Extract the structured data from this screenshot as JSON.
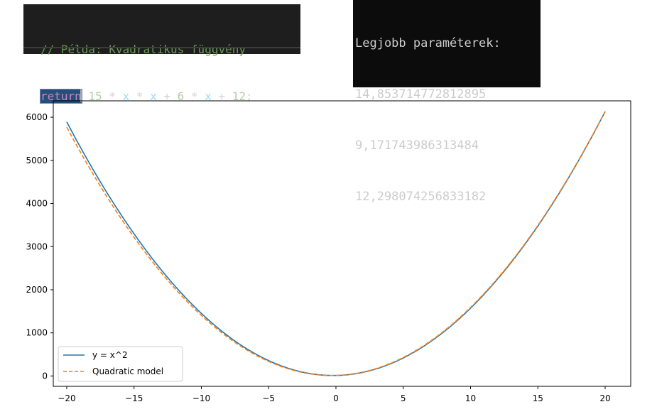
{
  "code_editor": {
    "comment": "// Példa: Kvadratikus függvény",
    "tokens": [
      {
        "text": "return",
        "kind": "keyword"
      },
      {
        "text": " 15",
        "kind": "number"
      },
      {
        "text": " *",
        "kind": "op"
      },
      {
        "text": " x",
        "kind": "ident"
      },
      {
        "text": " *",
        "kind": "op"
      },
      {
        "text": " x",
        "kind": "ident"
      },
      {
        "text": " +",
        "kind": "op"
      },
      {
        "text": " 6",
        "kind": "number"
      },
      {
        "text": " *",
        "kind": "op"
      },
      {
        "text": " x",
        "kind": "ident"
      },
      {
        "text": " +",
        "kind": "op"
      },
      {
        "text": " 12",
        "kind": "number"
      },
      {
        "text": ";",
        "kind": "op"
      }
    ],
    "colors": {
      "background": "#1e1e1e",
      "comment": "#6a9955",
      "keyword": "#c586c0",
      "number": "#b5cea8",
      "identifier": "#9cdcfe"
    }
  },
  "console": {
    "lines": [
      "Legjobb paraméterek:",
      "14,853714772812895",
      "9,171743986313484",
      "12,298074256833182"
    ]
  },
  "chart_data": {
    "type": "line",
    "x_range": [
      -20,
      20
    ],
    "xlim": [
      -21.0,
      21.9
    ],
    "ylim": [
      -240,
      6380
    ],
    "xticks": [
      -20,
      -15,
      -10,
      -5,
      0,
      5,
      10,
      15,
      20
    ],
    "xtick_labels": [
      "−20",
      "−15",
      "−10",
      "−5",
      "0",
      "5",
      "10",
      "15",
      "20"
    ],
    "yticks": [
      0,
      1000,
      2000,
      3000,
      4000,
      5000,
      6000
    ],
    "ytick_labels": [
      "0",
      "1000",
      "2000",
      "3000",
      "4000",
      "5000",
      "6000"
    ],
    "grid": false,
    "legend_position": "lower-left",
    "series": [
      {
        "name": "y = x^2",
        "style": "solid",
        "color": "#1f77b4",
        "formula_coefficients": [
          15,
          6,
          12
        ]
      },
      {
        "name": "Quadratic model",
        "style": "dashed",
        "color": "#ff7f0e",
        "formula_coefficients": [
          14.853714772812895,
          9.171743986313484,
          12.298074256833182
        ]
      }
    ]
  }
}
